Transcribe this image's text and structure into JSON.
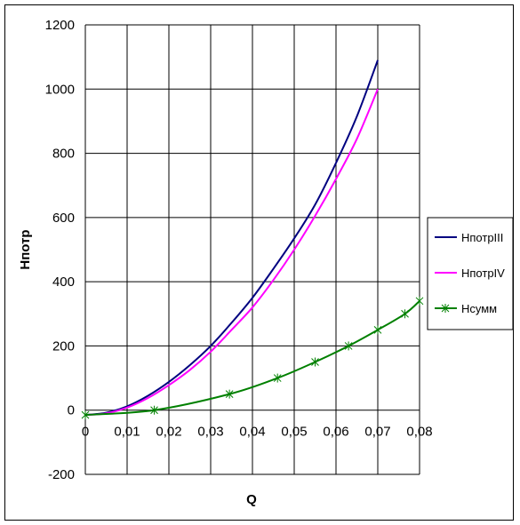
{
  "chart_data": {
    "type": "line",
    "title": "",
    "xlabel": "Q",
    "ylabel": "Нпотр",
    "xlim": [
      0,
      0.08
    ],
    "ylim": [
      -200,
      1200
    ],
    "x_tick_labels": [
      "0",
      "0,01",
      "0,02",
      "0,03",
      "0,04",
      "0,05",
      "0,06",
      "0,07",
      "0,08"
    ],
    "y_tick_labels": [
      "-200",
      "0",
      "200",
      "400",
      "600",
      "800",
      "1000",
      "1200"
    ],
    "x_ticks": [
      0,
      0.01,
      0.02,
      0.03,
      0.04,
      0.05,
      0.06,
      0.07,
      0.08
    ],
    "y_ticks": [
      -200,
      0,
      200,
      400,
      600,
      800,
      1000,
      1200
    ],
    "grid": true,
    "legend_position": "right",
    "series": [
      {
        "name": "НпотрIII",
        "color": "#000080",
        "marker": "none",
        "x": [
          0,
          0.005,
          0.01,
          0.015,
          0.02,
          0.025,
          0.03,
          0.035,
          0.04,
          0.045,
          0.05,
          0.055,
          0.06,
          0.065,
          0.07
        ],
        "y": [
          -15,
          -8,
          12,
          45,
          88,
          140,
          200,
          272,
          350,
          440,
          535,
          640,
          770,
          915,
          1090
        ]
      },
      {
        "name": "НпотрIV",
        "color": "#ff00ff",
        "marker": "none",
        "x": [
          0,
          0.005,
          0.01,
          0.015,
          0.02,
          0.025,
          0.03,
          0.035,
          0.04,
          0.045,
          0.05,
          0.055,
          0.06,
          0.065,
          0.07
        ],
        "y": [
          -15,
          -10,
          8,
          38,
          78,
          125,
          182,
          250,
          320,
          405,
          500,
          605,
          720,
          845,
          1000
        ]
      },
      {
        "name": "Нсумм",
        "color": "#008000",
        "marker": "asterisk",
        "x": [
          0,
          0.0165,
          0.0345,
          0.046,
          0.055,
          0.063,
          0.07,
          0.0765,
          0.08
        ],
        "y": [
          -15,
          0,
          50,
          100,
          150,
          200,
          250,
          300,
          340
        ]
      }
    ]
  }
}
